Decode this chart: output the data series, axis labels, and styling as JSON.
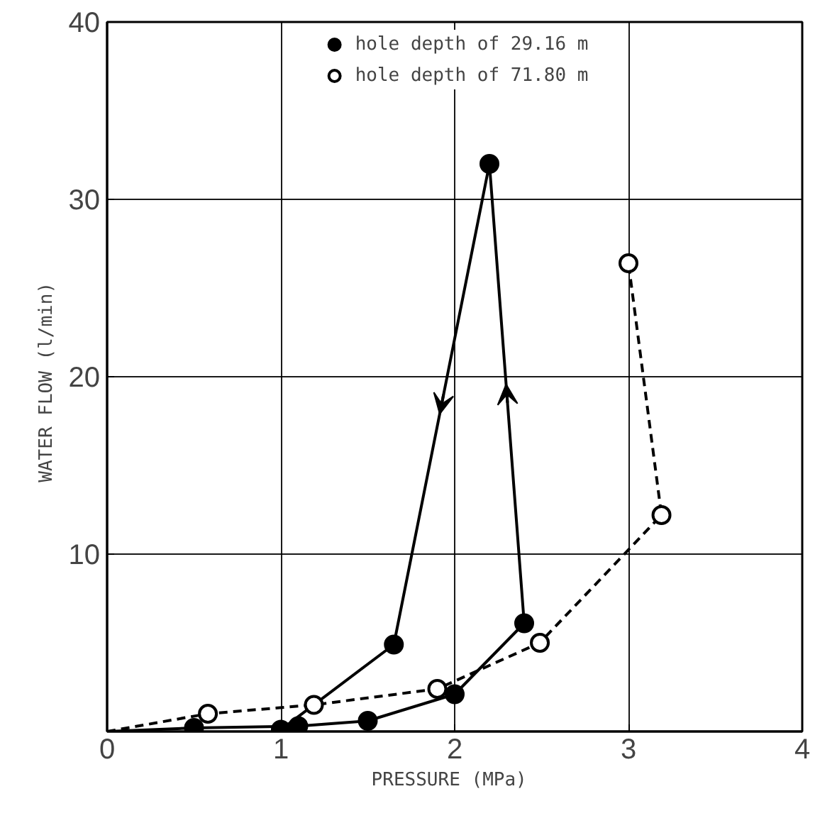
{
  "chart_data": {
    "type": "line",
    "xlabel": "PRESSURE  (MPa)",
    "ylabel": "WATER FLOW  (l/min)",
    "xlim": [
      0,
      4
    ],
    "ylim": [
      0,
      40
    ],
    "xticks": [
      0,
      1,
      2,
      3,
      4
    ],
    "yticks": [
      {
        "value": 0,
        "label": null
      },
      10,
      20,
      30,
      40
    ],
    "grid": true,
    "legend": "top",
    "series": [
      {
        "name": "hole depth of 29.16 m",
        "color": "#000000",
        "line_style": "solid",
        "marker": "circle",
        "x": [
          0,
          0.5,
          1.1,
          1.5,
          2.0,
          2.4,
          2.2,
          1.65,
          1.0
        ],
        "values": [
          0,
          0.2,
          0.3,
          0.6,
          2.1,
          6.1,
          32,
          4.9,
          0.1
        ]
      },
      {
        "name": "hole depth of 71.80 m",
        "color": "#000000",
        "line_style": "dashed",
        "marker": "open circle",
        "x": [
          0,
          0.58,
          1.19,
          1.9,
          2.49,
          3.19,
          3.0
        ],
        "values": [
          0,
          1.0,
          1.5,
          2.4,
          5.0,
          12.2,
          26.4
        ]
      }
    ]
  }
}
